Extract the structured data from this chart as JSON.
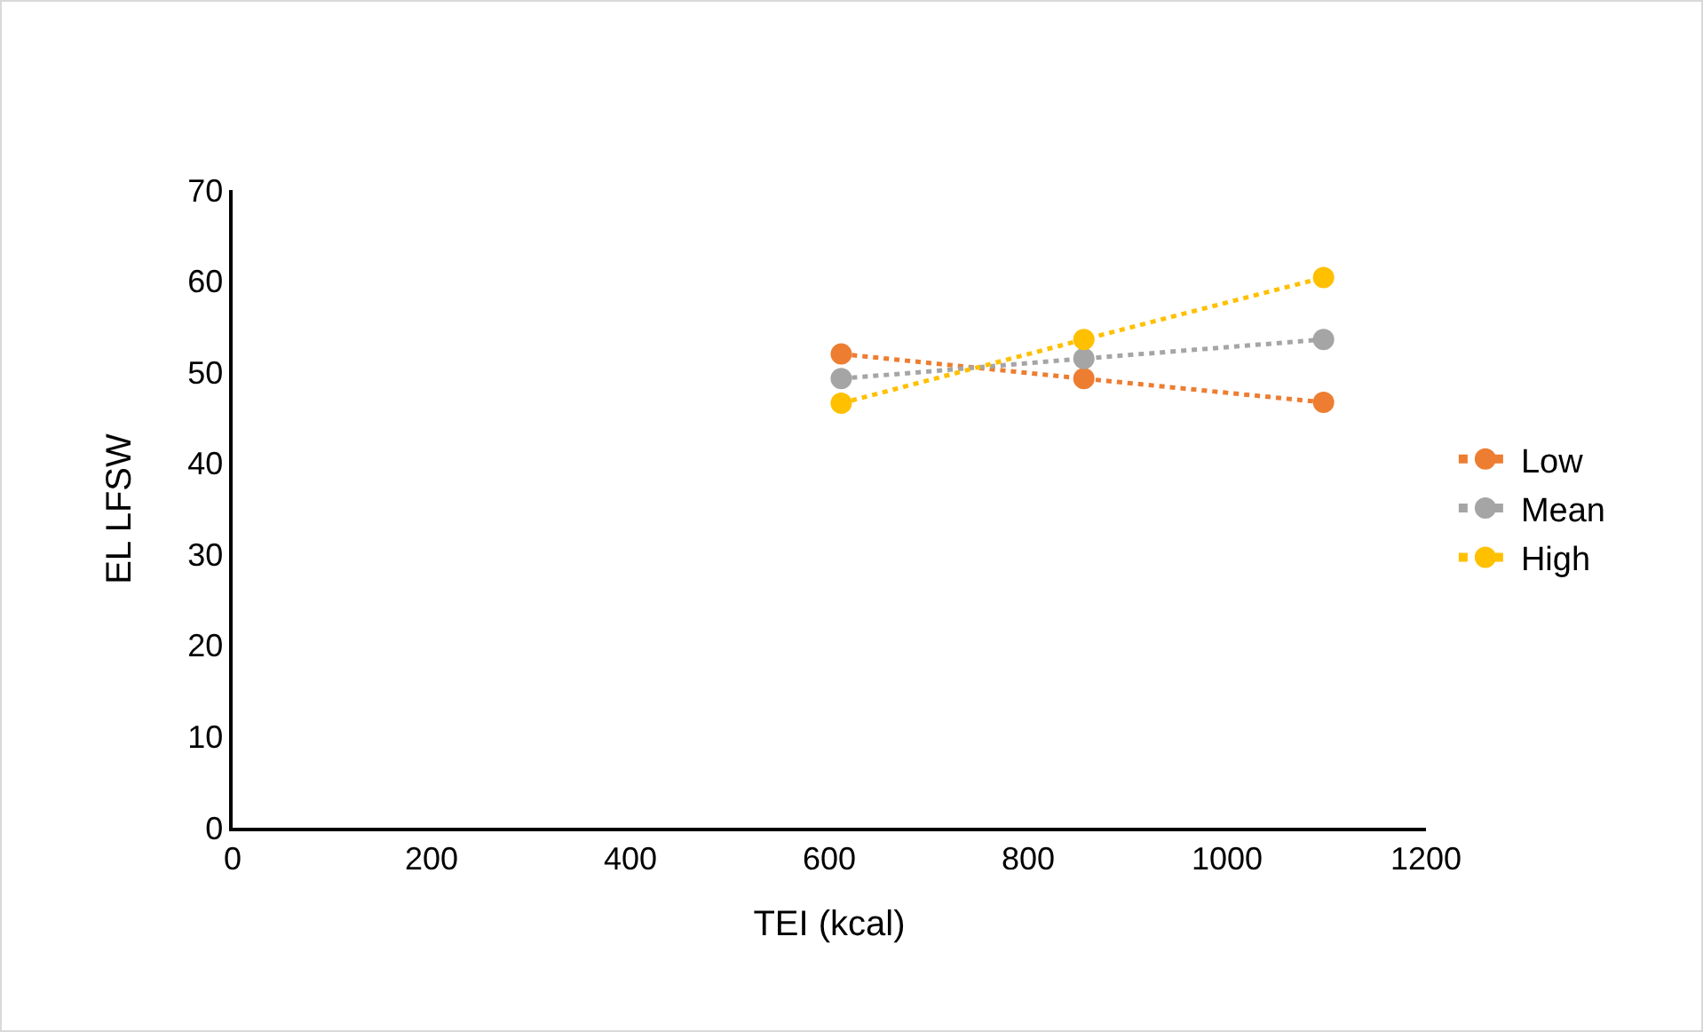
{
  "chart_data": {
    "type": "line",
    "xlabel": "TEI (kcal)",
    "ylabel": "EL LFSW",
    "x": [
      612,
      856,
      1097
    ],
    "series": [
      {
        "name": "Low",
        "color": "#ed7d31",
        "values": [
          52.0,
          49.3,
          46.7
        ]
      },
      {
        "name": "Mean",
        "color": "#a5a5a5",
        "values": [
          49.3,
          51.5,
          53.6
        ]
      },
      {
        "name": "High",
        "color": "#ffc000",
        "values": [
          46.6,
          53.6,
          60.4
        ]
      }
    ],
    "xlim": [
      0,
      1200
    ],
    "xticks": [
      0,
      200,
      400,
      600,
      800,
      1000,
      1200
    ],
    "ylim": [
      0,
      70
    ],
    "yticks": [
      0,
      10,
      20,
      30,
      40,
      50,
      60,
      70
    ],
    "grid": false,
    "legend": "right",
    "marker": "circle",
    "line_style": "dotted"
  }
}
